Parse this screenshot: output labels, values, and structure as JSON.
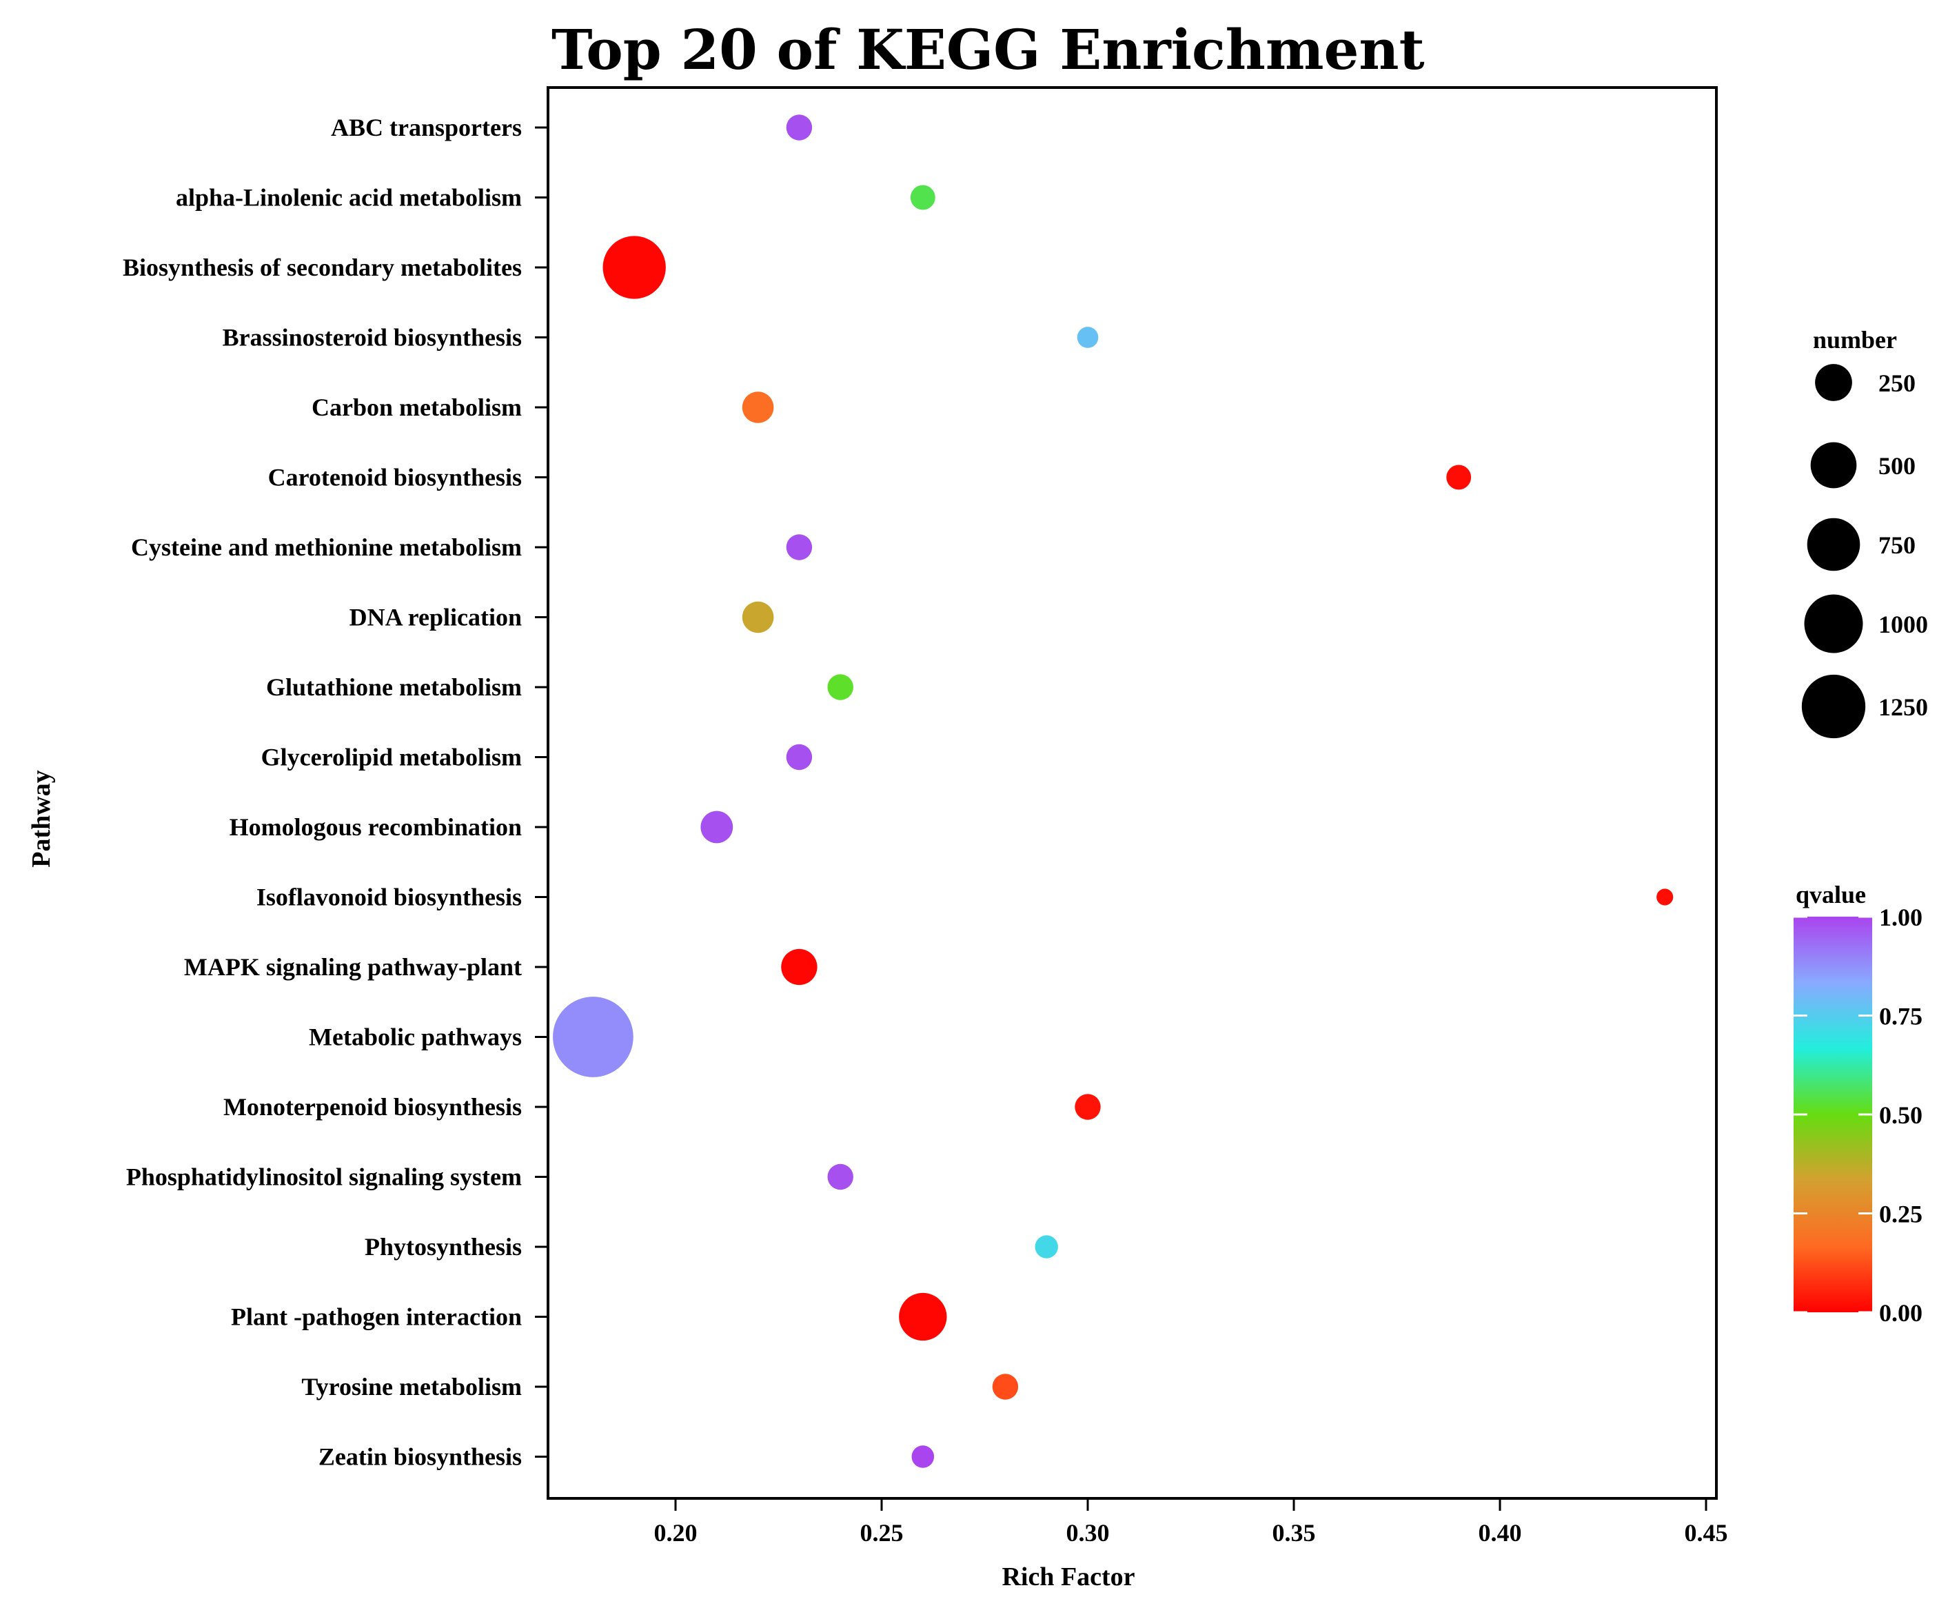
{
  "chart_data": {
    "type": "scatter",
    "title": "Top 20 of KEGG Enrichment",
    "xlabel": "Rich Factor",
    "ylabel": "Pathway",
    "xlim": [
      0.169,
      0.453
    ],
    "xticks": [
      0.2,
      0.25,
      0.3,
      0.35,
      0.4,
      0.45
    ],
    "xtick_labels": [
      "0.20",
      "0.25",
      "0.30",
      "0.35",
      "0.40",
      "0.45"
    ],
    "grid": false,
    "legend_size": {
      "title": "number",
      "values": [
        250,
        500,
        750,
        1000,
        1250
      ],
      "labels": [
        "250",
        "500",
        "750",
        "1000",
        "1250"
      ]
    },
    "legend_color": {
      "title": "qvalue",
      "range": [
        0,
        1
      ],
      "ticks": [
        0.0,
        0.25,
        0.5,
        0.75,
        1.0
      ],
      "tick_labels": [
        "0.00",
        "0.25",
        "0.50",
        "0.75",
        "1.00"
      ],
      "stops": [
        "#ff0000",
        "#ff6a22",
        "#d4a030",
        "#66dd11",
        "#22eedd",
        "#88aaff",
        "#aa44ee"
      ]
    },
    "points": [
      {
        "pathway": "Zeatin biosynthesis",
        "rich_factor": 0.26,
        "number": 80,
        "qvalue": 1.0
      },
      {
        "pathway": "Tyrosine metabolism",
        "rich_factor": 0.28,
        "number": 110,
        "qvalue": 0.12
      },
      {
        "pathway": "Plant -pathogen interaction",
        "rich_factor": 0.26,
        "number": 420,
        "qvalue": 0.01
      },
      {
        "pathway": "Phytosynthesis",
        "rich_factor": 0.29,
        "number": 85,
        "qvalue": 0.72
      },
      {
        "pathway": "Phosphatidylinositol signaling system",
        "rich_factor": 0.24,
        "number": 110,
        "qvalue": 0.98
      },
      {
        "pathway": "Monoterpenoid biosynthesis",
        "rich_factor": 0.3,
        "number": 110,
        "qvalue": 0.03
      },
      {
        "pathway": "Metabolic pathways",
        "rich_factor": 0.18,
        "number": 1250,
        "qvalue": 0.88
      },
      {
        "pathway": "MAPK signaling pathway-plant",
        "rich_factor": 0.23,
        "number": 230,
        "qvalue": 0.01
      },
      {
        "pathway": "Isoflavonoid biosynthesis",
        "rich_factor": 0.44,
        "number": 40,
        "qvalue": 0.02
      },
      {
        "pathway": "Homologous recombination",
        "rich_factor": 0.21,
        "number": 180,
        "qvalue": 0.98
      },
      {
        "pathway": "Glycerolipid metabolism",
        "rich_factor": 0.23,
        "number": 110,
        "qvalue": 0.98
      },
      {
        "pathway": "Glutathione metabolism",
        "rich_factor": 0.24,
        "number": 110,
        "qvalue": 0.52
      },
      {
        "pathway": "DNA replication",
        "rich_factor": 0.22,
        "number": 170,
        "qvalue": 0.35
      },
      {
        "pathway": "Cysteine and methionine metabolism",
        "rich_factor": 0.23,
        "number": 110,
        "qvalue": 0.98
      },
      {
        "pathway": "Carotenoid biosynthesis",
        "rich_factor": 0.39,
        "number": 100,
        "qvalue": 0.02
      },
      {
        "pathway": "Carbon metabolism",
        "rich_factor": 0.22,
        "number": 170,
        "qvalue": 0.18
      },
      {
        "pathway": "Brassinosteroid biosynthesis",
        "rich_factor": 0.3,
        "number": 70,
        "qvalue": 0.78
      },
      {
        "pathway": "Biosynthesis of secondary metabolites",
        "rich_factor": 0.19,
        "number": 750,
        "qvalue": 0.01
      },
      {
        "pathway": "alpha-Linolenic acid metabolism",
        "rich_factor": 0.26,
        "number": 100,
        "qvalue": 0.55
      },
      {
        "pathway": "ABC transporters",
        "rich_factor": 0.23,
        "number": 110,
        "qvalue": 0.98
      }
    ]
  }
}
